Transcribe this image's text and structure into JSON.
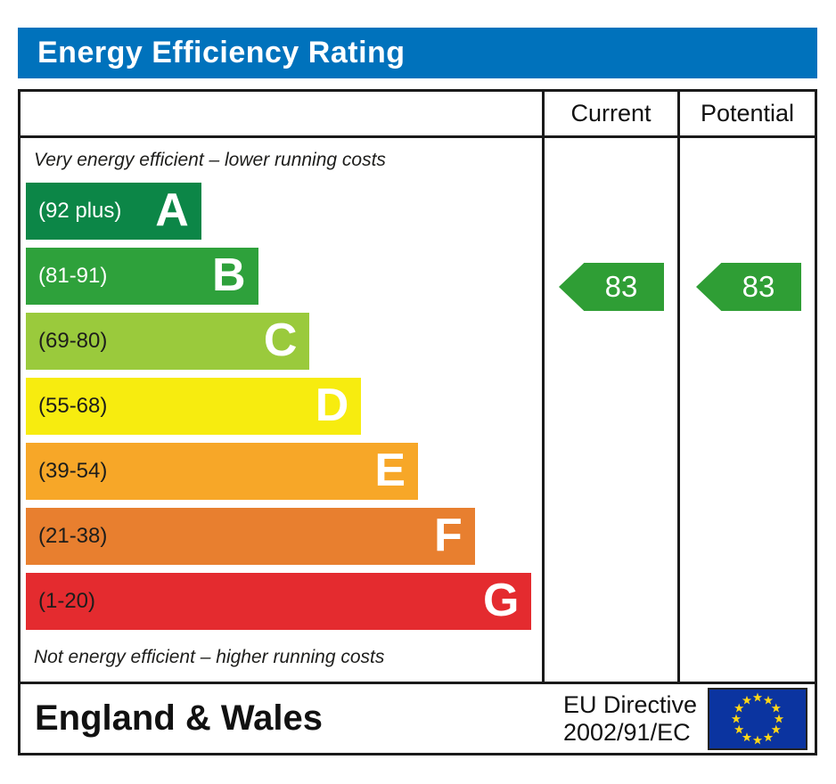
{
  "title": "Energy Efficiency Rating",
  "table_header": {
    "current": "Current",
    "potential": "Potential"
  },
  "notes": {
    "top": "Very energy efficient – lower running costs",
    "bottom": "Not energy efficient – higher running costs"
  },
  "bands": [
    {
      "letter": "A",
      "range": "(92 plus)",
      "color": "#0c8647",
      "width_pct": 34,
      "text_color": "#ffffff"
    },
    {
      "letter": "B",
      "range": "(81-91)",
      "color": "#2ea13b",
      "width_pct": 45,
      "text_color": "#ffffff"
    },
    {
      "letter": "C",
      "range": "(69-80)",
      "color": "#9aca3c",
      "width_pct": 55,
      "text_color": "#1d1d1b"
    },
    {
      "letter": "D",
      "range": "(55-68)",
      "color": "#f7ec0f",
      "width_pct": 65,
      "text_color": "#1d1d1b"
    },
    {
      "letter": "E",
      "range": "(39-54)",
      "color": "#f7a728",
      "width_pct": 76,
      "text_color": "#1d1d1b"
    },
    {
      "letter": "F",
      "range": "(21-38)",
      "color": "#e87f2f",
      "width_pct": 87,
      "text_color": "#1d1d1b"
    },
    {
      "letter": "G",
      "range": "(1-20)",
      "color": "#e42b2f",
      "width_pct": 98,
      "text_color": "#1d1d1b"
    }
  ],
  "ratings": {
    "current": "83",
    "potential": "83",
    "band": "B",
    "arrow_color": "#2f9e35"
  },
  "footer": {
    "region": "England & Wales",
    "directive_line1": "EU Directive",
    "directive_line2": "2002/91/EC"
  },
  "colors": {
    "title_bar": "#0072bc",
    "border": "#1a1a1a",
    "flag_blue": "#0b34a0",
    "flag_stars": "#ffd617"
  },
  "chart_data": {
    "type": "bar",
    "title": "Energy Efficiency Rating",
    "categories": [
      "A",
      "B",
      "C",
      "D",
      "E",
      "F",
      "G"
    ],
    "band_ranges": [
      "92 plus",
      "81-91",
      "69-80",
      "55-68",
      "39-54",
      "21-38",
      "1-20"
    ],
    "band_colors": [
      "#0c8647",
      "#2ea13b",
      "#9aca3c",
      "#f7ec0f",
      "#f7a728",
      "#e87f2f",
      "#e42b2f"
    ],
    "band_bar_width_pct": [
      34,
      45,
      55,
      65,
      76,
      87,
      98
    ],
    "series": [
      {
        "name": "Current",
        "value": 83,
        "band": "B"
      },
      {
        "name": "Potential",
        "value": 83,
        "band": "B"
      }
    ],
    "annotations": {
      "top": "Very energy efficient – lower running costs",
      "bottom": "Not energy efficient – higher running costs"
    },
    "footer_left": "England & Wales",
    "footer_right": "EU Directive 2002/91/EC",
    "legend_position": "none",
    "grid": false
  }
}
